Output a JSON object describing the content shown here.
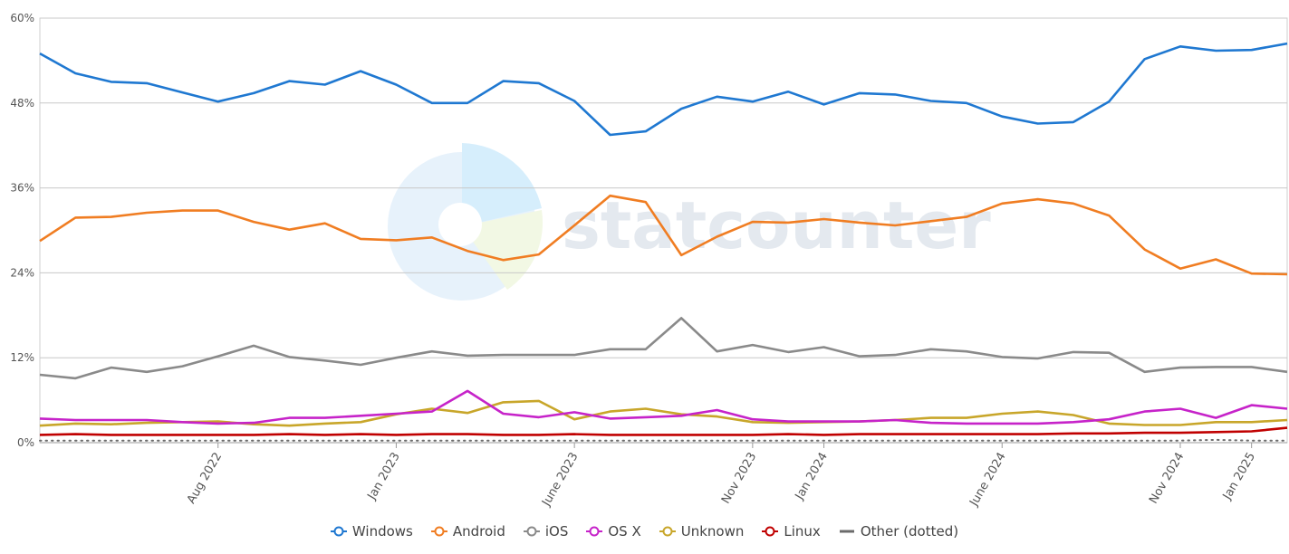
{
  "chart_data": {
    "type": "line",
    "ylim": [
      0,
      60
    ],
    "y_ticks": [
      "0%",
      "12%",
      "24%",
      "36%",
      "48%",
      "60%"
    ],
    "y_tick_values": [
      0,
      12,
      24,
      36,
      48,
      60
    ],
    "x_count": 36,
    "x_tick_labels": [
      {
        "index": 5,
        "label": "Aug 2022"
      },
      {
        "index": 10,
        "label": "Jan 2023"
      },
      {
        "index": 15,
        "label": "June 2023"
      },
      {
        "index": 20,
        "label": "Nov 2023"
      },
      {
        "index": 22,
        "label": "Jan 2024"
      },
      {
        "index": 27,
        "label": "June 2024"
      },
      {
        "index": 32,
        "label": "Nov 2024"
      },
      {
        "index": 34,
        "label": "Jan 2025"
      }
    ],
    "grid": true,
    "legend_position": "bottom",
    "watermark": "statcounter",
    "series": [
      {
        "name": "Windows",
        "color": "#1f78d1",
        "dotted": false,
        "values": [
          55.0,
          52.2,
          51.0,
          50.8,
          49.5,
          48.2,
          49.4,
          51.1,
          50.6,
          52.5,
          50.6,
          48.0,
          48.0,
          51.1,
          50.8,
          48.3,
          43.5,
          44.0,
          47.2,
          48.9,
          48.2,
          49.6,
          47.8,
          49.4,
          49.2,
          48.3,
          48.0,
          46.1,
          45.1,
          45.3,
          48.2,
          54.2,
          56.0,
          55.4,
          55.5,
          56.4
        ]
      },
      {
        "name": "Android",
        "color": "#f07d22",
        "dotted": false,
        "values": [
          28.5,
          31.8,
          31.9,
          32.5,
          32.8,
          32.8,
          31.2,
          30.1,
          31.0,
          28.8,
          28.6,
          29.0,
          27.1,
          25.8,
          26.6,
          30.7,
          34.9,
          34.0,
          26.5,
          29.1,
          31.2,
          31.1,
          31.6,
          31.1,
          30.7,
          31.3,
          31.9,
          33.8,
          34.4,
          33.8,
          32.1,
          27.3,
          24.6,
          25.9,
          23.9,
          23.8
        ]
      },
      {
        "name": "iOS",
        "color": "#8a8a8a",
        "dotted": false,
        "values": [
          9.6,
          9.1,
          10.6,
          10.0,
          10.8,
          12.2,
          13.7,
          12.1,
          11.6,
          11.0,
          12.0,
          12.9,
          12.3,
          12.4,
          12.4,
          12.4,
          13.2,
          13.2,
          17.6,
          12.9,
          13.8,
          12.8,
          13.5,
          12.2,
          12.4,
          13.2,
          12.9,
          12.1,
          11.9,
          12.8,
          12.7,
          10.0,
          10.6,
          10.7,
          10.7,
          10.0
        ]
      },
      {
        "name": "OS X",
        "color": "#c623c9",
        "dotted": false,
        "values": [
          3.4,
          3.2,
          3.2,
          3.2,
          2.9,
          2.7,
          2.8,
          3.5,
          3.5,
          3.8,
          4.1,
          4.4,
          7.3,
          4.1,
          3.6,
          4.3,
          3.4,
          3.6,
          3.8,
          4.6,
          3.3,
          3.0,
          3.0,
          3.0,
          3.2,
          2.8,
          2.7,
          2.7,
          2.7,
          2.9,
          3.3,
          4.4,
          4.8,
          3.5,
          5.3,
          4.8
        ]
      },
      {
        "name": "Unknown",
        "color": "#c8a62a",
        "dotted": false,
        "values": [
          2.4,
          2.7,
          2.6,
          2.8,
          2.9,
          3.0,
          2.6,
          2.4,
          2.7,
          2.9,
          4.0,
          4.8,
          4.2,
          5.7,
          5.9,
          3.3,
          4.4,
          4.8,
          4.0,
          3.7,
          2.9,
          2.8,
          2.9,
          3.0,
          3.2,
          3.5,
          3.5,
          4.1,
          4.4,
          3.9,
          2.7,
          2.5,
          2.5,
          2.9,
          2.9,
          3.2
        ]
      },
      {
        "name": "Linux",
        "color": "#c00000",
        "dotted": false,
        "values": [
          1.1,
          1.2,
          1.1,
          1.1,
          1.1,
          1.1,
          1.1,
          1.2,
          1.1,
          1.2,
          1.1,
          1.2,
          1.2,
          1.1,
          1.1,
          1.2,
          1.1,
          1.1,
          1.1,
          1.1,
          1.1,
          1.2,
          1.1,
          1.2,
          1.2,
          1.2,
          1.2,
          1.2,
          1.2,
          1.3,
          1.3,
          1.4,
          1.4,
          1.5,
          1.6,
          2.1
        ]
      },
      {
        "name": "Other (dotted)",
        "color": "#6b6b6b",
        "dotted": true,
        "values": [
          0.3,
          0.3,
          0.3,
          0.3,
          0.3,
          0.3,
          0.3,
          0.3,
          0.3,
          0.3,
          0.3,
          0.3,
          0.3,
          0.3,
          0.3,
          0.3,
          0.3,
          0.3,
          0.3,
          0.3,
          0.3,
          0.3,
          0.3,
          0.3,
          0.3,
          0.3,
          0.3,
          0.3,
          0.3,
          0.3,
          0.3,
          0.3,
          0.3,
          0.4,
          0.3,
          0.3
        ]
      }
    ]
  }
}
